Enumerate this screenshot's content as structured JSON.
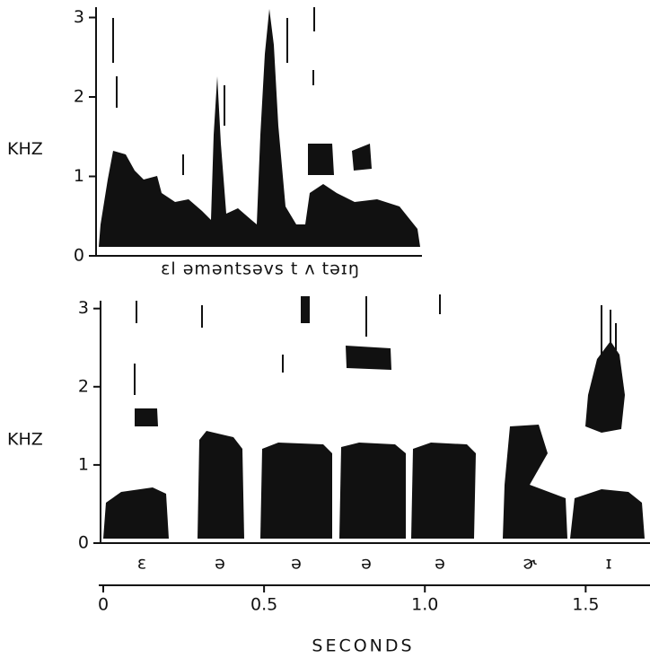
{
  "panels": [
    {
      "type": "spectrogram",
      "y_label": "KHZ",
      "ylim": [
        0,
        3.13
      ],
      "yticks": [
        0,
        1,
        2,
        3
      ],
      "transcription": "ɛl əməntsəvs t ʌ təɪŋ"
    },
    {
      "type": "spectrogram",
      "y_label": "KHZ",
      "ylim": [
        0,
        3.1
      ],
      "yticks": [
        0,
        1,
        2,
        3
      ],
      "segments": [
        "ɛ",
        "ə",
        "ə",
        "ə",
        "ə",
        "ɚ",
        "ɪ"
      ],
      "xlim": [
        0,
        1.7
      ],
      "xticks": [
        0,
        0.5,
        {
          "value": 1,
          "label": "1.0"
        },
        1.5
      ],
      "x_label": "SECONDS"
    }
  ]
}
